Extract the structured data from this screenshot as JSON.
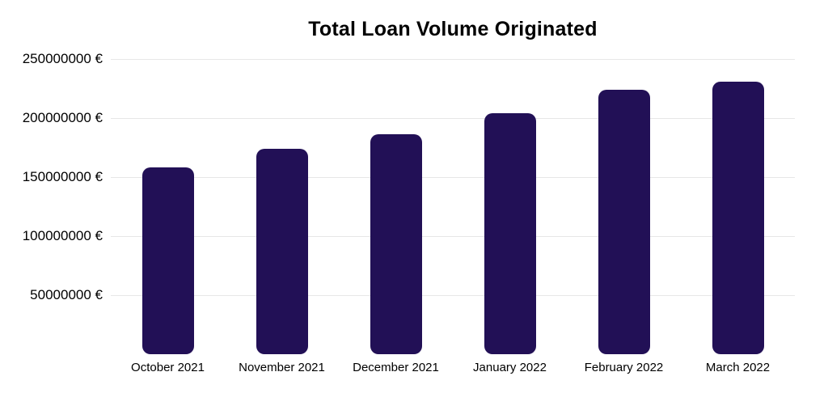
{
  "chart_data": {
    "type": "bar",
    "title": "Total Loan Volume Originated",
    "categories": [
      "October 2021",
      "November 2021",
      "December 2021",
      "January 2022",
      "February 2022",
      "March 2022"
    ],
    "values": [
      158000000,
      174000000,
      186000000,
      204000000,
      224000000,
      231000000
    ],
    "unit": "€",
    "xlabel": "",
    "ylabel": "",
    "ylim": [
      0,
      250000000
    ],
    "yticks": [
      {
        "value": 250000000,
        "label": "250000000 €"
      },
      {
        "value": 200000000,
        "label": "200000000 €"
      },
      {
        "value": 150000000,
        "label": "150000000 €"
      },
      {
        "value": 100000000,
        "label": "100000000 €"
      },
      {
        "value": 50000000,
        "label": "50000000 €"
      }
    ],
    "grid": true,
    "legend_position": "none",
    "colors": {
      "bar": "#221056",
      "gridline": "#e7e7e7",
      "text": "#000000",
      "background": "#ffffff"
    }
  }
}
